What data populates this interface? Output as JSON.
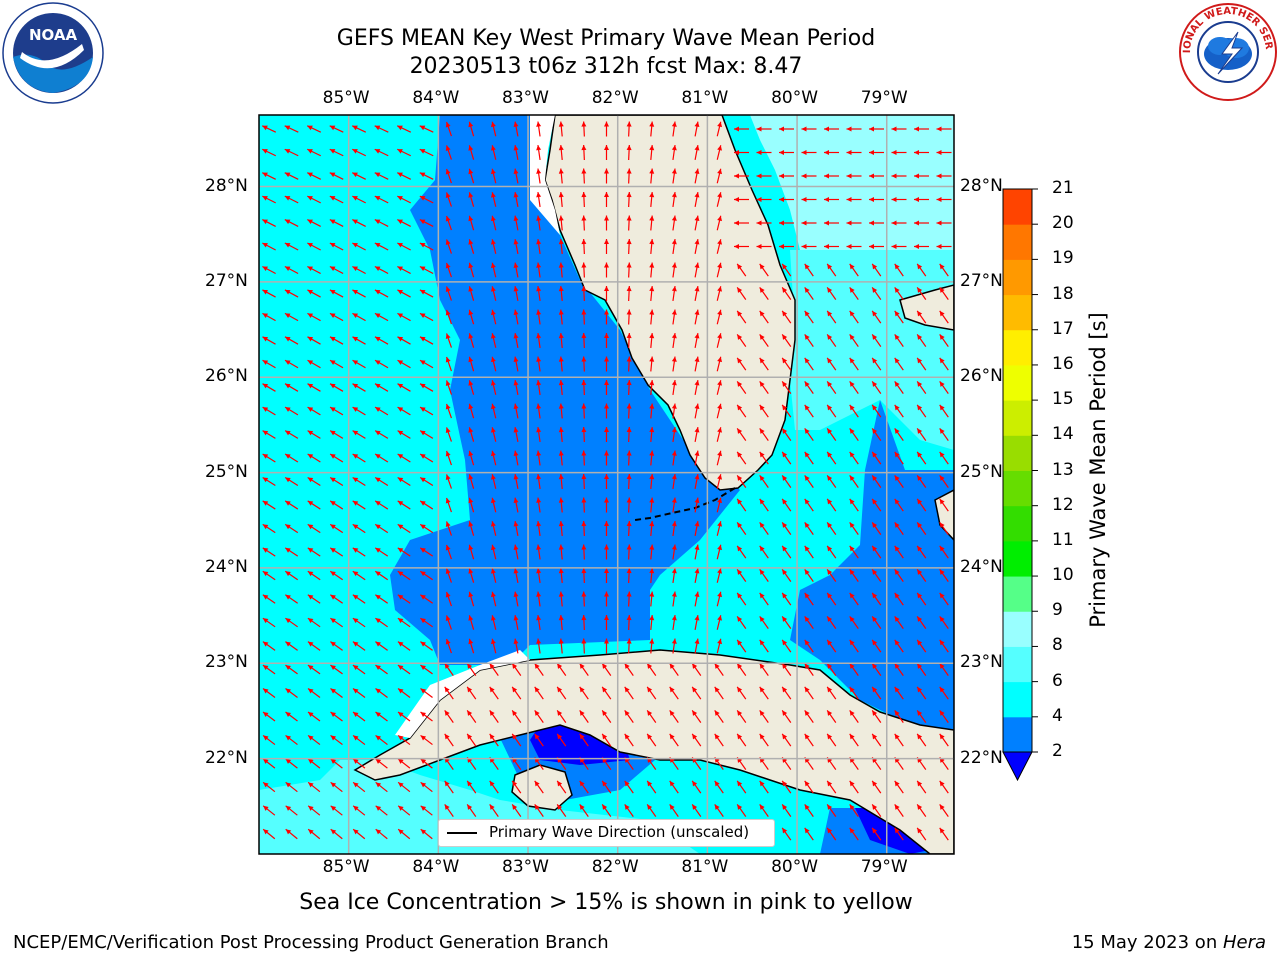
{
  "title": {
    "line1": "GEFS MEAN Key West Primary Wave Mean Period",
    "line2": "20230513 t06z 312h fcst   Max: 8.47"
  },
  "logos": {
    "left": {
      "name": "noaa-logo",
      "text": "NOAA"
    },
    "right": {
      "name": "nws-logo",
      "text": "NATIONAL WEATHER SERVICE"
    }
  },
  "map": {
    "lon_range": [
      -86.0,
      -78.25
    ],
    "lat_range": [
      21.0,
      28.75
    ],
    "lon_ticks": [
      {
        "value": -85,
        "label": "85°W"
      },
      {
        "value": -84,
        "label": "84°W"
      },
      {
        "value": -83,
        "label": "83°W"
      },
      {
        "value": -82,
        "label": "82°W"
      },
      {
        "value": -81,
        "label": "81°W"
      },
      {
        "value": -80,
        "label": "80°W"
      },
      {
        "value": -79,
        "label": "79°W"
      }
    ],
    "lat_ticks": [
      {
        "value": 28,
        "label": "28°N"
      },
      {
        "value": 27,
        "label": "27°N"
      },
      {
        "value": 26,
        "label": "26°N"
      },
      {
        "value": 25,
        "label": "25°N"
      },
      {
        "value": 24,
        "label": "24°N"
      },
      {
        "value": 23,
        "label": "23°N"
      },
      {
        "value": 22,
        "label": "22°N"
      }
    ],
    "colors": {
      "land": "#efecdd",
      "band_2_4": "#0080ff",
      "band_4_6": "#00ffff",
      "band_6_8": "#55ffff",
      "band_8_9": "#99ffff",
      "band_below_2": "#0000ff",
      "arrow": "#ff0000",
      "grid": "#b0b0b0"
    },
    "legend_label": "Primary Wave Direction (unscaled)"
  },
  "colorbar": {
    "label": "Primary Wave Mean Period [s]",
    "ticks": [
      "2",
      "4",
      "6",
      "8",
      "9",
      "10",
      "11",
      "12",
      "13",
      "14",
      "15",
      "16",
      "17",
      "18",
      "19",
      "20",
      "21"
    ],
    "colors": [
      "#0080ff",
      "#00ffff",
      "#55ffff",
      "#99ffff",
      "#55ff88",
      "#00ee00",
      "#33dd00",
      "#66dd00",
      "#99dd00",
      "#ccee00",
      "#eeff00",
      "#ffee00",
      "#ffbb00",
      "#ff9900",
      "#ff7700",
      "#ff4400",
      "#ff0000"
    ],
    "under_color": "#0000ff"
  },
  "notes": {
    "sea_ice": "Sea Ice Concentration > 15% is shown in pink to yellow"
  },
  "footer": {
    "left": "NCEP/EMC/Verification Post Processing Product Generation Branch",
    "date": "15 May 2023 on ",
    "machine": "Hera"
  }
}
